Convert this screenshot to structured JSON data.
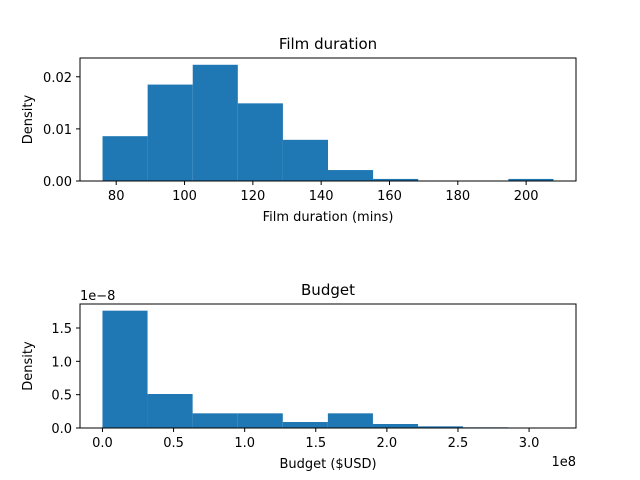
{
  "chart_data": [
    {
      "type": "bar",
      "title": "Film duration",
      "xlabel": "Film duration (mins)",
      "ylabel": "Density",
      "xlim": [
        69.4,
        214.6
      ],
      "ylim": [
        0,
        0.0236
      ],
      "xticks": [
        80,
        100,
        120,
        140,
        160,
        180,
        200
      ],
      "xtick_labels": [
        "80",
        "100",
        "120",
        "140",
        "160",
        "180",
        "200"
      ],
      "yticks": [
        0.0,
        0.01,
        0.02
      ],
      "ytick_labels": [
        "0.00",
        "0.01",
        "0.02"
      ],
      "offset_text": "",
      "bar_color": "#1f77b4",
      "bin_edges": [
        76,
        89.2,
        102.4,
        115.6,
        128.8,
        142,
        155.2,
        168.4,
        181.6,
        194.8,
        208
      ],
      "values": [
        0.0086,
        0.0185,
        0.0223,
        0.0149,
        0.0079,
        0.0021,
        0.0004,
        0.0,
        0.0,
        0.0004
      ]
    },
    {
      "type": "bar",
      "title": "Budget",
      "xlabel": "Budget ($USD)",
      "ylabel": "Density",
      "xlim": [
        -15800000,
        333000000
      ],
      "ylim": [
        0,
        1.86
      ],
      "xticks": [
        0,
        50000000,
        100000000,
        150000000,
        200000000,
        250000000,
        300000000
      ],
      "xtick_labels": [
        "0.0",
        "0.5",
        "1.0",
        "1.5",
        "2.0",
        "2.5",
        "3.0"
      ],
      "yticks": [
        0,
        0.5,
        1.0,
        1.5
      ],
      "ytick_labels": [
        "0.0",
        "0.5",
        "1.0",
        "1.5"
      ],
      "offset_text": "1e−8",
      "xaxis_offset_text": "1e8",
      "bar_color": "#1f77b4",
      "bin_edges": [
        0,
        31700000,
        63400000,
        95100000,
        126800000,
        158500000,
        190200000,
        221900000,
        253600000,
        285300000,
        317000000
      ],
      "values": [
        1.76,
        0.51,
        0.22,
        0.22,
        0.09,
        0.22,
        0.06,
        0.025,
        0.01,
        0.005
      ]
    }
  ]
}
